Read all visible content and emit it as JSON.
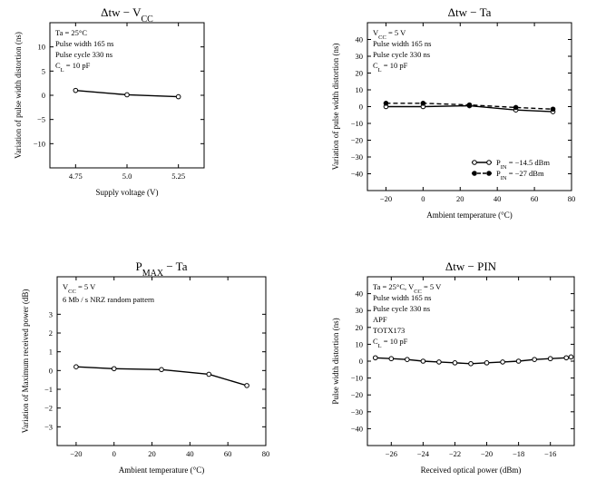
{
  "chart_data": [
    {
      "type": "line",
      "title": "Δtw − V",
      "title_sub": "CC",
      "xlabel": "Supply voltage (V)",
      "ylabel": "Variation of pulse width distortion (ns)",
      "xlim": [
        4.625,
        5.375
      ],
      "ylim": [
        -15,
        15
      ],
      "xticks": [
        4.75,
        5.0,
        5.25
      ],
      "xtick_labels": [
        "4.75",
        "5.0",
        "5.25"
      ],
      "yticks": [
        -10,
        -5,
        0,
        5,
        10
      ],
      "ytick_labels": [
        "−10",
        "−5",
        "0",
        "5",
        "10"
      ],
      "annotations": [
        {
          "main": "Ta = 25°C",
          "sub": ""
        },
        {
          "main": "Pulse width 165 ns",
          "sub": ""
        },
        {
          "main": "Pulse cycle 330 ns",
          "sub": ""
        },
        {
          "main": "C",
          "sub": "L",
          "rest": " = 10 pF"
        }
      ],
      "series": [
        {
          "x": [
            4.75,
            5.0,
            5.25
          ],
          "y": [
            1.0,
            0.1,
            -0.3
          ],
          "style": "solid",
          "marker": "open"
        }
      ]
    },
    {
      "type": "line",
      "title": "Δtw − Ta",
      "title_sub": "",
      "xlabel": "Ambient temperature (°C)",
      "ylabel": "Variation of pulse width distortion (ns)",
      "xlim": [
        -30,
        80
      ],
      "ylim": [
        -50,
        50
      ],
      "xticks": [
        -20,
        0,
        20,
        40,
        60,
        80
      ],
      "xtick_labels": [
        "−20",
        "0",
        "20",
        "40",
        "60",
        "80"
      ],
      "yticks": [
        -40,
        -30,
        -20,
        -10,
        0,
        10,
        20,
        30,
        40
      ],
      "ytick_labels": [
        "−40",
        "−30",
        "−20",
        "−10",
        "0",
        "10",
        "20",
        "30",
        "40"
      ],
      "annotations": [
        {
          "main": "V",
          "sub": "CC",
          "rest": " = 5 V"
        },
        {
          "main": "Pulse width 165 ns",
          "sub": ""
        },
        {
          "main": "Pulse cycle 330 ns",
          "sub": ""
        },
        {
          "main": "C",
          "sub": "L",
          "rest": " = 10 pF"
        }
      ],
      "legend": [
        {
          "main": "P",
          "sub": "IN",
          "rest": " = −14.5 dBm",
          "style": "solid",
          "marker": "open"
        },
        {
          "main": "P",
          "sub": "IN",
          "rest": " = −27 dBm",
          "style": "dashed",
          "marker": "filled"
        }
      ],
      "series": [
        {
          "x": [
            -20,
            0,
            25,
            50,
            70
          ],
          "y": [
            0,
            0,
            0.5,
            -2,
            -3
          ],
          "style": "solid",
          "marker": "open"
        },
        {
          "x": [
            -20,
            0,
            25,
            50,
            70
          ],
          "y": [
            2,
            2,
            1,
            -0.5,
            -1.5
          ],
          "style": "dashed",
          "marker": "filled"
        }
      ]
    },
    {
      "type": "line",
      "title": "P",
      "title_sub": "MAX",
      "title_rest": " − Ta",
      "xlabel": "Ambient temperature (°C)",
      "ylabel": "Variation of Maximum received power (dB)",
      "xlim": [
        -30,
        80
      ],
      "ylim": [
        -4,
        5
      ],
      "xticks": [
        -20,
        0,
        20,
        40,
        60,
        80
      ],
      "xtick_labels": [
        "−20",
        "0",
        "20",
        "40",
        "60",
        "80"
      ],
      "yticks": [
        -3,
        -2,
        -1,
        0,
        1,
        2,
        3
      ],
      "ytick_labels": [
        "−3",
        "−2",
        "−1",
        "0",
        "1",
        "2",
        "3"
      ],
      "annotations": [
        {
          "main": "V",
          "sub": "CC",
          "rest": " = 5 V"
        },
        {
          "main": "6 Mb / s NRZ random pattern",
          "sub": ""
        }
      ],
      "series": [
        {
          "x": [
            -20,
            0,
            25,
            50,
            70
          ],
          "y": [
            0.2,
            0.1,
            0.05,
            -0.2,
            -0.8
          ],
          "style": "solid",
          "marker": "open"
        }
      ]
    },
    {
      "type": "line",
      "title": "Δtw − PIN",
      "title_sub": "",
      "xlabel": "Received optical power (dBm)",
      "ylabel": "Pulse width distortion (ns)",
      "xlim": [
        -27.5,
        -14.5
      ],
      "ylim": [
        -50,
        50
      ],
      "xticks": [
        -26,
        -24,
        -22,
        -20,
        -18,
        -16
      ],
      "xtick_labels": [
        "−26",
        "−24",
        "−22",
        "−20",
        "−18",
        "−16"
      ],
      "yticks": [
        -40,
        -30,
        -20,
        -10,
        0,
        10,
        20,
        30,
        40
      ],
      "ytick_labels": [
        "−40",
        "−30",
        "−20",
        "−10",
        "0",
        "10",
        "20",
        "30",
        "40"
      ],
      "annotations": [
        {
          "main": "Ta = 25°C, V",
          "sub": "CC",
          "rest": " = 5 V"
        },
        {
          "main": "Pulse width 165 ns",
          "sub": ""
        },
        {
          "main": "Pulse cycle 330 ns",
          "sub": ""
        },
        {
          "main": "APF",
          "sub": ""
        },
        {
          "main": "TOTX173",
          "sub": ""
        },
        {
          "main": "C",
          "sub": "L",
          "rest": " = 10 pF"
        }
      ],
      "series": [
        {
          "x": [
            -27,
            -26,
            -25,
            -24,
            -23,
            -22,
            -21,
            -20,
            -19,
            -18,
            -17,
            -16,
            -15,
            -14.7
          ],
          "y": [
            2,
            1.5,
            1,
            0,
            -0.5,
            -1,
            -1.5,
            -1,
            -0.5,
            0,
            1,
            1.5,
            2,
            2.5
          ],
          "style": "solid",
          "marker": "open"
        }
      ]
    }
  ]
}
